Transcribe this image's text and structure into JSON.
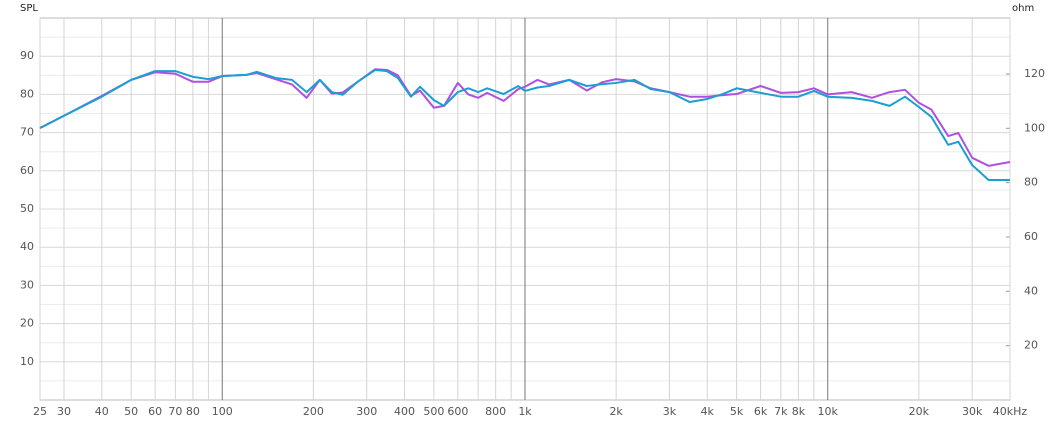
{
  "chart_data": {
    "type": "line",
    "y_label": "SPL",
    "y2_label": "ohm",
    "x_scale": "log",
    "xlim": [
      25,
      40000
    ],
    "xticks": [
      25,
      30,
      40,
      50,
      60,
      70,
      80,
      100,
      200,
      300,
      400,
      500,
      600,
      800,
      {
        "value": 1000,
        "label": "1k"
      },
      {
        "value": 2000,
        "label": "2k"
      },
      {
        "value": 3000,
        "label": "3k"
      },
      {
        "value": 4000,
        "label": "4k"
      },
      {
        "value": 5000,
        "label": "5k"
      },
      {
        "value": 6000,
        "label": "6k"
      },
      {
        "value": 7000,
        "label": "7k"
      },
      {
        "value": 8000,
        "label": "8k"
      },
      {
        "value": 10000,
        "label": "10k"
      },
      {
        "value": 20000,
        "label": "20k"
      },
      {
        "value": 30000,
        "label": "30k"
      },
      {
        "value": 40000,
        "label": "40kHz"
      }
    ],
    "x_minor_ticks": [
      90,
      700,
      900,
      9000
    ],
    "ylim": [
      0,
      100
    ],
    "yticks": [
      10,
      20,
      30,
      40,
      50,
      60,
      70,
      80,
      90
    ],
    "y_minor_ticks": [
      5,
      15,
      25,
      35,
      45,
      55,
      65,
      75,
      85,
      95
    ],
    "y2lim": [
      0,
      140.6
    ],
    "y2ticks": [
      20,
      40,
      60,
      80,
      100,
      120
    ],
    "grid": true,
    "x": [
      25,
      30,
      40,
      50,
      60,
      70,
      80,
      90,
      100,
      120,
      130,
      150,
      170,
      190,
      210,
      230,
      250,
      280,
      320,
      350,
      380,
      420,
      450,
      500,
      540,
      600,
      650,
      700,
      750,
      850,
      950,
      1000,
      1100,
      1200,
      1400,
      1600,
      1800,
      2000,
      2300,
      2600,
      3000,
      3500,
      4000,
      4500,
      5000,
      6000,
      7000,
      8000,
      9000,
      10000,
      12000,
      14000,
      16000,
      18000,
      20000,
      22000,
      25000,
      27000,
      30000,
      34000,
      40000
    ],
    "series": [
      {
        "name": "purple",
        "color": "#b150de",
        "values": [
          71.2,
          74.4,
          79.6,
          83.8,
          85.8,
          85.4,
          83.3,
          83.3,
          84.8,
          85.1,
          85.6,
          84.0,
          82.6,
          79.1,
          83.8,
          80.2,
          80.5,
          83.3,
          86.6,
          86.4,
          85.0,
          79.6,
          81.0,
          76.5,
          77.0,
          83.0,
          80.0,
          79.1,
          80.4,
          78.3,
          81.4,
          82.0,
          83.8,
          82.6,
          83.8,
          81.0,
          83.2,
          84.0,
          83.4,
          81.6,
          80.6,
          79.4,
          79.4,
          79.8,
          80.1,
          82.2,
          80.4,
          80.6,
          81.6,
          80.0,
          80.6,
          79.1,
          80.6,
          81.2,
          77.8,
          76.0,
          69.1,
          69.9,
          63.4,
          61.3,
          62.3
        ]
      },
      {
        "name": "cyan",
        "color": "#1b9fd2",
        "values": [
          71.2,
          74.4,
          79.4,
          83.8,
          86.1,
          86.1,
          84.6,
          84.0,
          84.8,
          85.1,
          85.9,
          84.3,
          83.8,
          80.6,
          83.8,
          80.6,
          79.9,
          83.3,
          86.4,
          86.1,
          84.3,
          79.4,
          82.0,
          78.5,
          77.0,
          80.6,
          81.6,
          80.6,
          81.6,
          80.1,
          82.2,
          80.9,
          81.8,
          82.2,
          83.8,
          82.2,
          82.7,
          83.0,
          83.8,
          81.4,
          80.6,
          78.0,
          78.8,
          80.1,
          81.6,
          80.4,
          79.4,
          79.4,
          80.9,
          79.4,
          79.1,
          78.3,
          77.0,
          79.4,
          76.7,
          74.1,
          66.8,
          67.6,
          61.5,
          57.6,
          57.6
        ]
      }
    ]
  }
}
